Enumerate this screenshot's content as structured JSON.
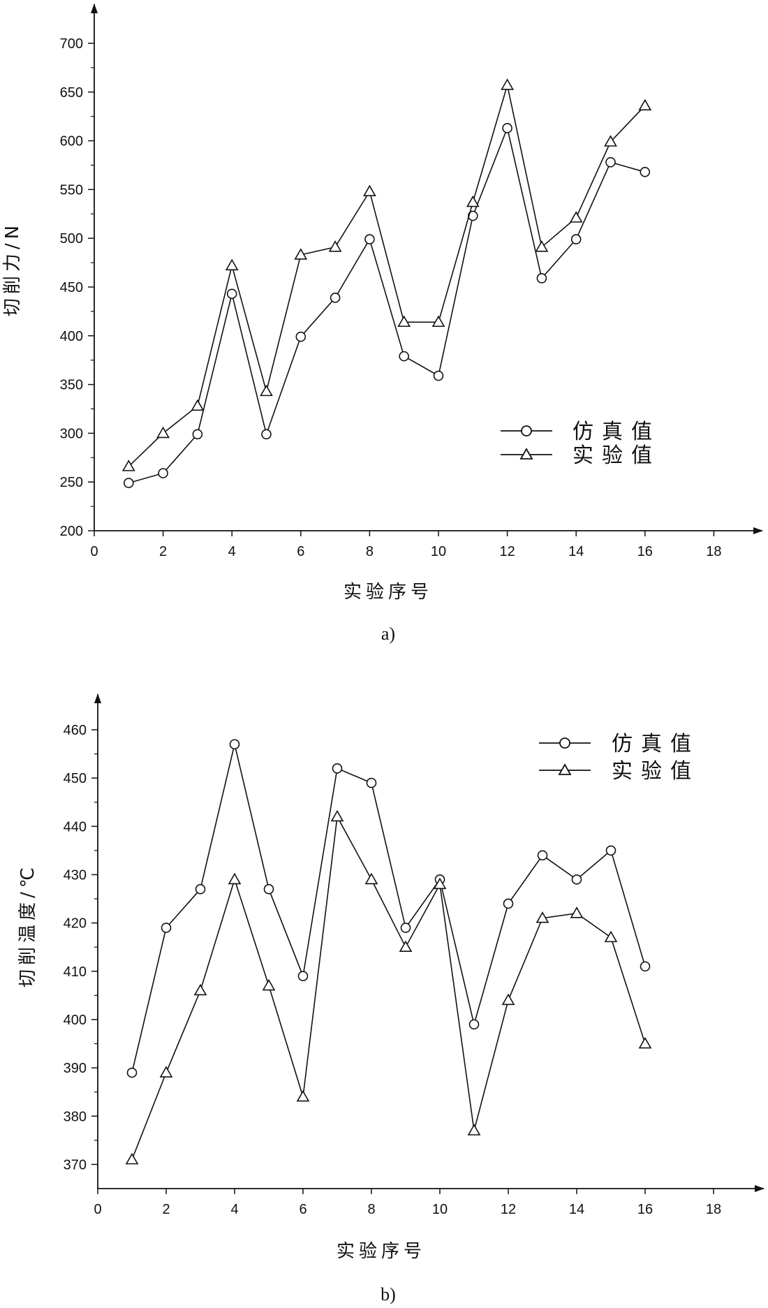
{
  "chart_data": [
    {
      "type": "line",
      "caption": "a)",
      "xlabel": "实验序号",
      "ylabel": "切削力/N",
      "xlim": [
        0,
        18
      ],
      "ylim": [
        200,
        700
      ],
      "xticks": [
        0,
        2,
        4,
        6,
        8,
        10,
        12,
        14,
        16,
        18
      ],
      "yticks": [
        200,
        250,
        300,
        350,
        400,
        450,
        500,
        550,
        600,
        650,
        700
      ],
      "grid": false,
      "legend_position": "bottom-right",
      "x": [
        1,
        2,
        3,
        4,
        5,
        6,
        7,
        8,
        9,
        10,
        11,
        12,
        13,
        14,
        15,
        16
      ],
      "series": [
        {
          "name": "仿真值",
          "marker": "circle",
          "values": [
            249,
            259,
            299,
            443,
            299,
            399,
            439,
            499,
            379,
            359,
            523,
            613,
            459,
            499,
            578,
            568
          ]
        },
        {
          "name": "实验值",
          "marker": "triangle",
          "values": [
            266,
            300,
            328,
            472,
            343,
            483,
            491,
            548,
            414,
            414,
            537,
            657,
            491,
            521,
            599,
            636
          ]
        }
      ]
    },
    {
      "type": "line",
      "caption": "b)",
      "xlabel": "实验序号",
      "ylabel": "切削温度/℃",
      "xlim": [
        0,
        18
      ],
      "ylim": [
        365,
        465
      ],
      "xticks": [
        0,
        2,
        4,
        6,
        8,
        10,
        12,
        14,
        16,
        18
      ],
      "yticks": [
        370,
        380,
        390,
        400,
        410,
        420,
        430,
        440,
        450,
        460
      ],
      "grid": false,
      "legend_position": "top-right",
      "x": [
        1,
        2,
        3,
        4,
        5,
        6,
        7,
        8,
        9,
        10,
        11,
        12,
        13,
        14,
        15,
        16
      ],
      "series": [
        {
          "name": "仿真值",
          "marker": "circle",
          "values": [
            389,
            419,
            427,
            457,
            427,
            409,
            452,
            449,
            419,
            429,
            399,
            424,
            434,
            429,
            435,
            411
          ]
        },
        {
          "name": "实验值",
          "marker": "triangle",
          "values": [
            371,
            389,
            406,
            429,
            407,
            384,
            442,
            429,
            415,
            428,
            377,
            404,
            421,
            422,
            417,
            395
          ]
        }
      ]
    }
  ]
}
